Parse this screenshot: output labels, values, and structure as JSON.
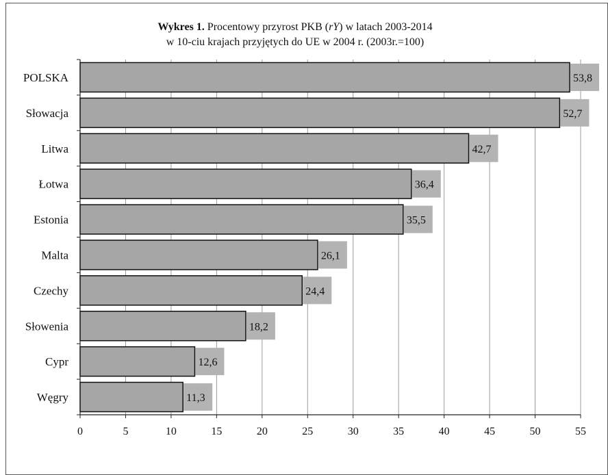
{
  "chart_data": {
    "type": "bar",
    "orientation": "horizontal",
    "title_part1": "Wykres 1.",
    "title_part2": " Procentowy przyrost PKB (",
    "title_italic": "rY",
    "title_part3": ")  w latach 2003-2014",
    "subtitle": "w 10-ciu krajach przyjętych do UE w 2004 r.  (2003r.=100)",
    "categories": [
      "POLSKA",
      "Słowacja",
      "Litwa",
      "Łotwa",
      "Estonia",
      "Malta",
      "Czechy",
      "Słowenia",
      "Cypr",
      "Węgry"
    ],
    "values": [
      53.8,
      52.7,
      42.7,
      36.4,
      35.5,
      26.1,
      24.4,
      18.2,
      12.6,
      11.3
    ],
    "data_labels": [
      "53,8",
      "52,7",
      "42,7",
      "36,4",
      "35,5",
      "26,1",
      "24,4",
      "18,2",
      "12,6",
      "11,3"
    ],
    "xlim": [
      0,
      55
    ],
    "xticks": [
      0,
      5,
      10,
      15,
      20,
      25,
      30,
      35,
      40,
      45,
      50,
      55
    ],
    "grid": "vertical",
    "bar_color": "#a6a6a6",
    "label_bg_color": "#b3b3b3",
    "grid_color": "#9a9a9a"
  }
}
